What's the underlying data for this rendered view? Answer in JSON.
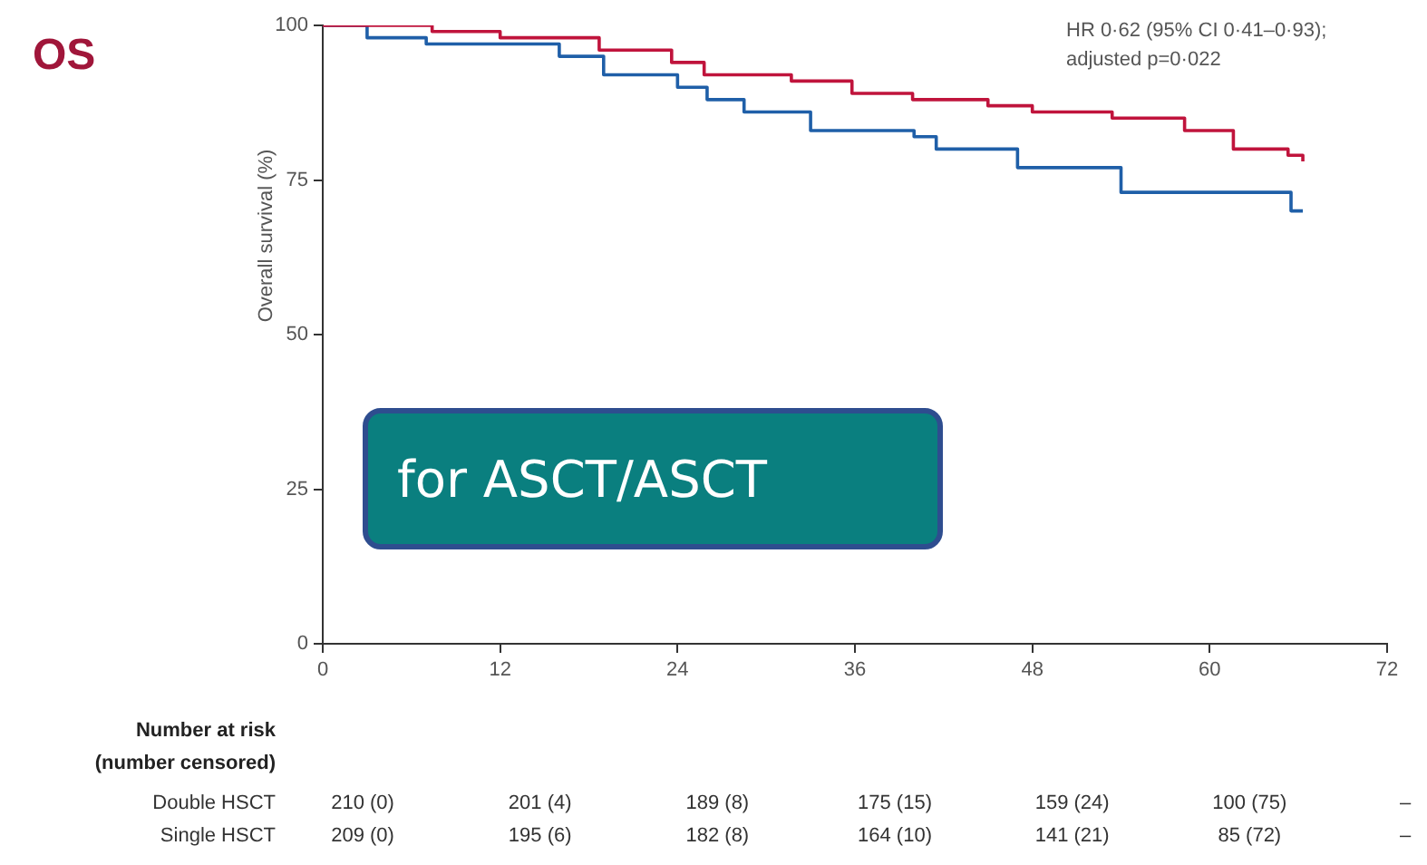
{
  "chart_data": {
    "type": "step",
    "title": "OS",
    "ylabel": "Overall survival (%)",
    "xlim": [
      0,
      72
    ],
    "xticks": [
      0,
      12,
      24,
      36,
      48,
      60,
      72
    ],
    "ylim": [
      0,
      100
    ],
    "yticks": [
      0,
      25,
      50,
      75,
      100
    ],
    "grid": false,
    "legend": false,
    "marker": "none",
    "line_style": "solid",
    "series": [
      {
        "color": "#c0143c",
        "x": [
          0,
          7.4,
          12,
          18.7,
          23.6,
          25.8,
          31.7,
          35.8,
          39.9,
          45,
          48,
          53.4,
          58.3,
          61.6,
          65.3,
          66.3
        ],
        "values": [
          100,
          99,
          98,
          96,
          94,
          92,
          91,
          89,
          88,
          87,
          86,
          85,
          83,
          80,
          79,
          78
        ]
      },
      {
        "color": "#1f5fa8",
        "x": [
          0,
          3,
          7,
          16,
          19,
          24,
          26,
          28.5,
          33,
          40,
          41.5,
          47,
          54,
          65.5,
          66.3
        ],
        "values": [
          100,
          98,
          97,
          95,
          92,
          90,
          88,
          86,
          83,
          82,
          80,
          77,
          73,
          70,
          70
        ]
      }
    ],
    "annotations": [
      "HR 0·62 (95% CI 0·41–0·93);",
      "adjusted p=0·022",
      "Number at risk",
      "(number censored)",
      "Double HSCT",
      "210 (0)",
      "201 (4)",
      "189 (8)",
      "175 (15)",
      "159 (24)",
      "100 (75)",
      "–",
      "Single HSCT",
      "209 (0)",
      "195 (6)",
      "182 (8)",
      "164 (10)",
      "141 (21)",
      "85 (72)",
      "–",
      "for ASCT/ASCT"
    ]
  }
}
